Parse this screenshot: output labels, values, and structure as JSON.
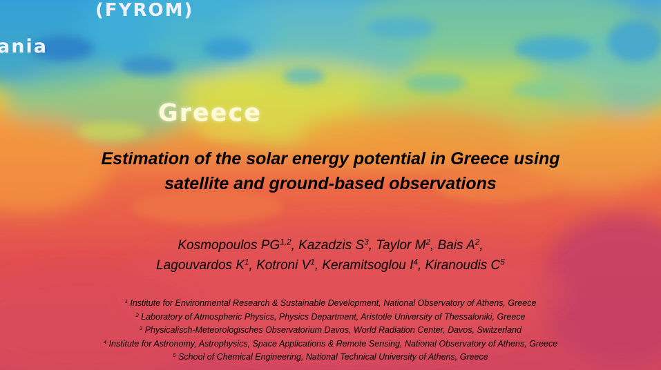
{
  "map_labels": {
    "fyrom": "(FYROM)",
    "ania": "ania",
    "greece": "Greece"
  },
  "title": {
    "line1": "Estimation of the solar energy potential in Greece using",
    "line2": "satellite and ground-based observations"
  },
  "authors": [
    [
      {
        "name": "Kosmopoulos PG",
        "sup": "1,2",
        "sep": ", "
      },
      {
        "name": "Kazadzis S",
        "sup": "3",
        "sep": ", "
      },
      {
        "name": "Taylor M",
        "sup": "2",
        "sep": ", "
      },
      {
        "name": "Bais A",
        "sup": "2",
        "sep": ","
      }
    ],
    [
      {
        "name": "Lagouvardos K",
        "sup": "1",
        "sep": ", "
      },
      {
        "name": "Kotroni V",
        "sup": "1",
        "sep": ", "
      },
      {
        "name": "Keramitsoglou I",
        "sup": "4",
        "sep": ", "
      },
      {
        "name": "Kiranoudis C",
        "sup": "5",
        "sep": ""
      }
    ]
  ],
  "affiliations": [
    {
      "num": "1",
      "text": " Institute for Environmental Research & Sustainable Development, National Observatory of Athens, Greece"
    },
    {
      "num": "2",
      "text": " Laboratory of Atmospheric Physics, Physics Department, Aristotle University of Thessaloniki, Greece"
    },
    {
      "num": "3",
      "text": " Physicalisch-Meteorologisches Observatorium Davos, World Radiation Center, Davos, Switzerland"
    },
    {
      "num": "4",
      "text": " Institute for Astronomy, Astrophysics, Space Applications & Remote Sensing, National Observatory of Athens, Greece"
    },
    {
      "num": "5",
      "text": " School of Chemical Engineering, National Technical University of Athens, Greece"
    }
  ]
}
